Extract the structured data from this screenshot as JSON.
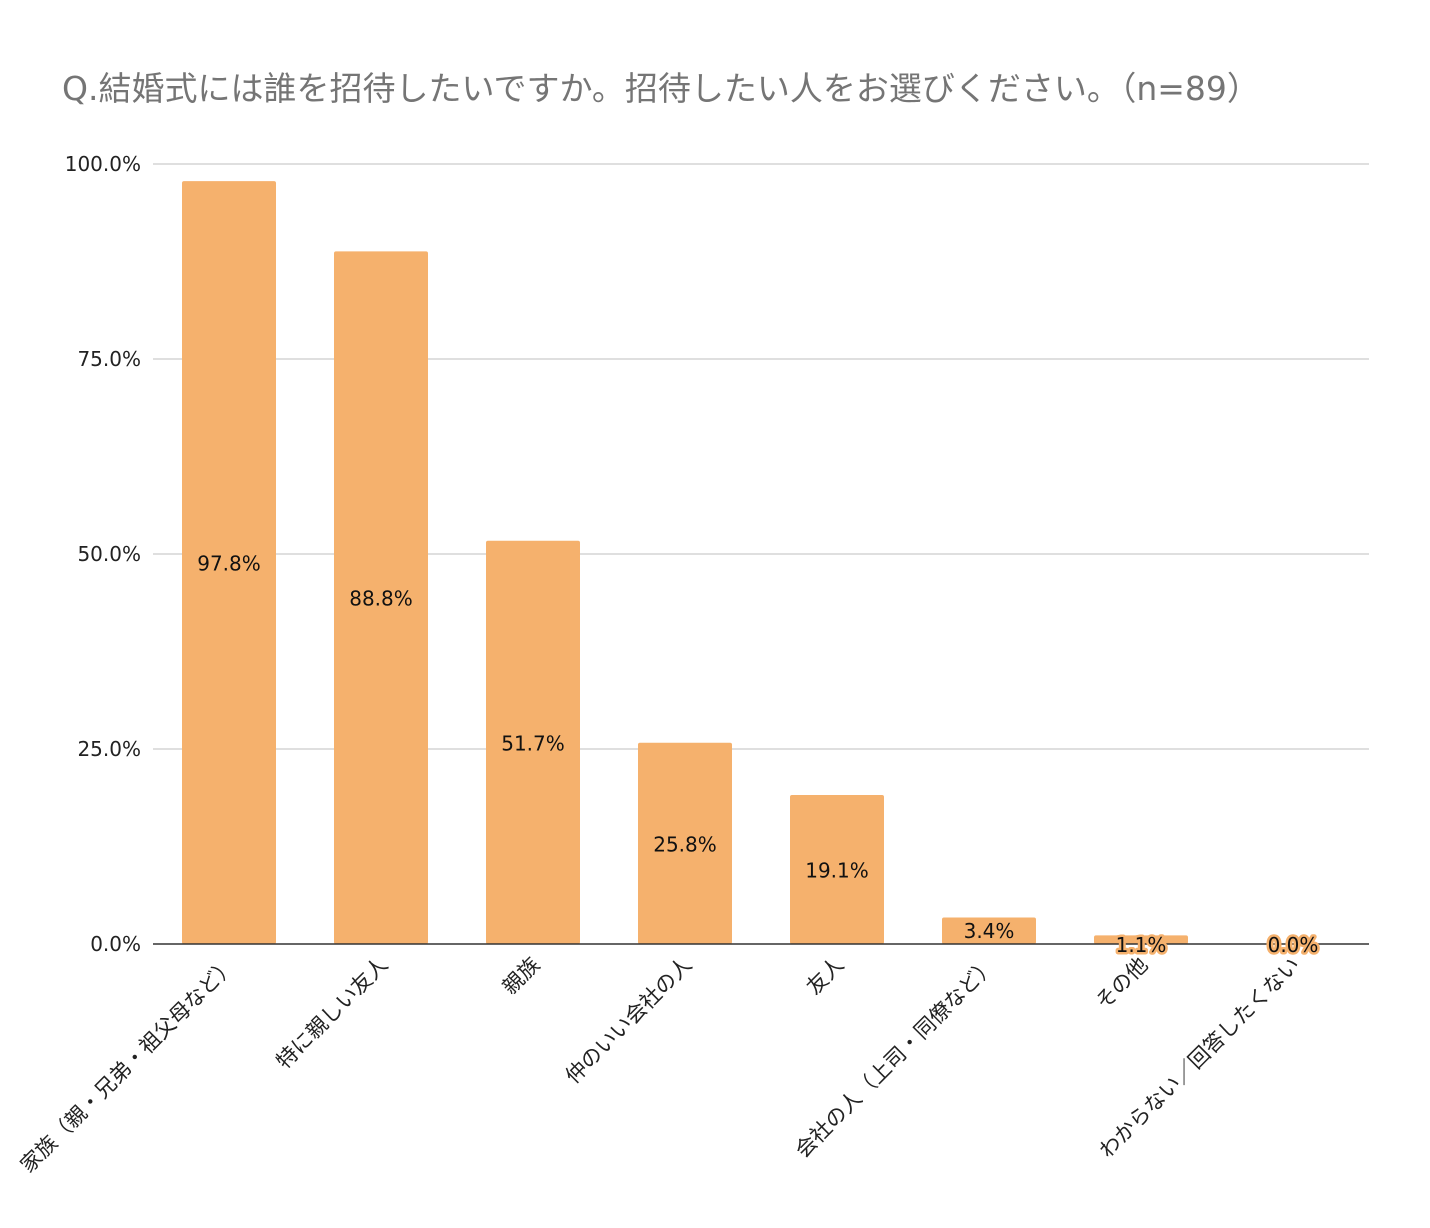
{
  "chart_data": {
    "type": "bar",
    "title": "Q.結婚式には誰を招待したいですか。招待したい人をお選びください。（n=89）",
    "xlabel": "",
    "ylabel": "",
    "ylim": [
      0,
      100
    ],
    "yticks": [
      "0.0%",
      "25.0%",
      "50.0%",
      "75.0%",
      "100.0%"
    ],
    "grid": true,
    "legend": "none",
    "bar_color": "#f5b16d",
    "categories": [
      "家族（親・兄弟・祖父母など）",
      "特に親しい友人",
      "親族",
      "仲のいい会社の人",
      "友人",
      "会社の人（上司・同僚など）",
      "その他",
      "わからない／回答したくない"
    ],
    "values": [
      97.8,
      88.8,
      51.7,
      25.8,
      19.1,
      3.4,
      1.1,
      0.0
    ],
    "data_labels": [
      "97.8%",
      "88.8%",
      "51.7%",
      "25.8%",
      "19.1%",
      "3.4%",
      "1.1%",
      "0.0%"
    ]
  }
}
